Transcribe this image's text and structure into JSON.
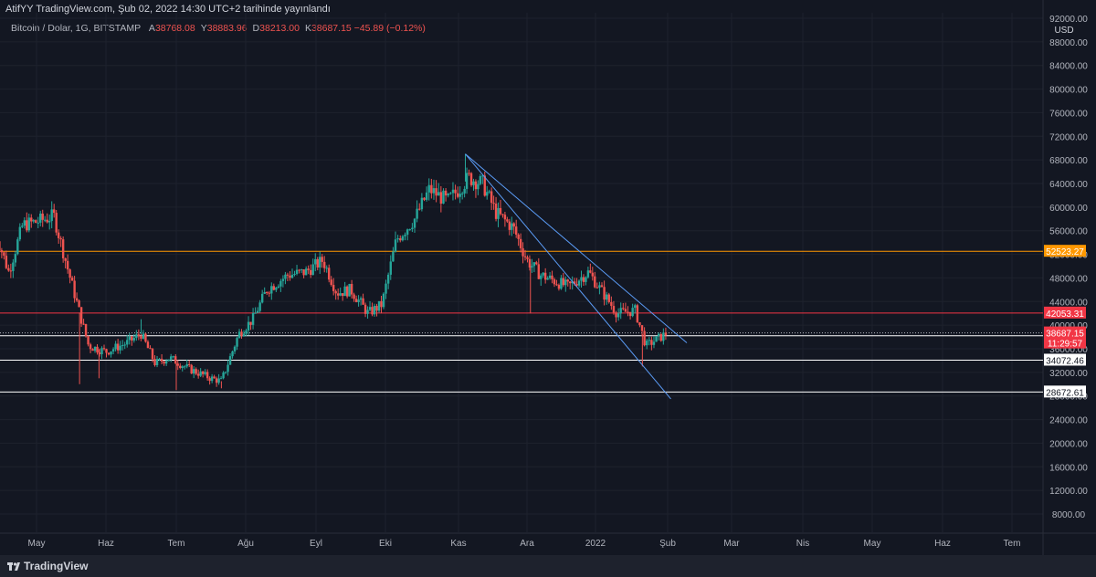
{
  "header": {
    "published": "AtifYY TradingView.com, Şub 02, 2022 14:30 UTC+2 tarihinde yayınlandı",
    "symbol": "Bitcoin / Dolar, 1G, BITSTAMP",
    "ohlc": [
      {
        "key": "A",
        "value": "38768.08"
      },
      {
        "key": "Y",
        "value": "38883.96"
      },
      {
        "key": "D",
        "value": "38213.00"
      },
      {
        "key": "K",
        "value": "38687.15 −45.89 (−0.12%)"
      }
    ]
  },
  "footer": {
    "brand": "TradingView"
  },
  "chart_data": {
    "type": "candlestick",
    "currency": "USD",
    "ylim": [
      6000,
      92000
    ],
    "y_ticks": [
      8000,
      12000,
      16000,
      20000,
      24000,
      28000,
      32000,
      36000,
      40000,
      44000,
      48000,
      52000,
      56000,
      60000,
      64000,
      68000,
      72000,
      76000,
      80000,
      84000,
      88000,
      92000
    ],
    "x_ticks": [
      "May",
      "Haz",
      "Tem",
      "Ağu",
      "Eyl",
      "Eki",
      "Kas",
      "Ara",
      "2022",
      "Şub",
      "Mar",
      "Nis",
      "May",
      "Haz",
      "Tem"
    ],
    "close_path": [
      {
        "t": -0.6,
        "p": 56000
      },
      {
        "t": -0.4,
        "p": 49000
      },
      {
        "t": -0.2,
        "p": 57000
      },
      {
        "t": 0.0,
        "p": 57500
      },
      {
        "t": 0.25,
        "p": 58500
      },
      {
        "t": 0.45,
        "p": 49500
      },
      {
        "t": 0.6,
        "p": 43000
      },
      {
        "t": 0.75,
        "p": 36500
      },
      {
        "t": 1.0,
        "p": 35500
      },
      {
        "t": 1.3,
        "p": 37000
      },
      {
        "t": 1.5,
        "p": 38500
      },
      {
        "t": 1.7,
        "p": 33500
      },
      {
        "t": 1.9,
        "p": 34500
      },
      {
        "t": 2.2,
        "p": 32500
      },
      {
        "t": 2.5,
        "p": 31000
      },
      {
        "t": 2.65,
        "p": 30500
      },
      {
        "t": 2.9,
        "p": 38500
      },
      {
        "t": 3.1,
        "p": 41000
      },
      {
        "t": 3.3,
        "p": 46000
      },
      {
        "t": 3.6,
        "p": 48500
      },
      {
        "t": 3.85,
        "p": 49000
      },
      {
        "t": 4.1,
        "p": 51000
      },
      {
        "t": 4.3,
        "p": 45500
      },
      {
        "t": 4.5,
        "p": 46000
      },
      {
        "t": 4.75,
        "p": 42000
      },
      {
        "t": 4.95,
        "p": 43500
      },
      {
        "t": 5.15,
        "p": 54500
      },
      {
        "t": 5.4,
        "p": 58000
      },
      {
        "t": 5.6,
        "p": 63000
      },
      {
        "t": 5.85,
        "p": 61000
      },
      {
        "t": 6.15,
        "p": 65000
      },
      {
        "t": 6.35,
        "p": 64000
      },
      {
        "t": 6.55,
        "p": 59000
      },
      {
        "t": 6.8,
        "p": 56500
      },
      {
        "t": 7.0,
        "p": 51000
      },
      {
        "t": 7.2,
        "p": 48500
      },
      {
        "t": 7.6,
        "p": 46500
      },
      {
        "t": 7.9,
        "p": 49000
      },
      {
        "t": 8.1,
        "p": 45500
      },
      {
        "t": 8.3,
        "p": 42000
      },
      {
        "t": 8.55,
        "p": 42500
      },
      {
        "t": 8.7,
        "p": 36500
      },
      {
        "t": 9.0,
        "p": 38687
      }
    ],
    "candle_spikes": [
      {
        "t": 0.62,
        "low": 30000
      },
      {
        "t": 0.9,
        "low": 31000
      },
      {
        "t": 1.5,
        "high": 41000
      },
      {
        "t": 2.0,
        "low": 29000
      },
      {
        "t": 2.65,
        "low": 29300
      },
      {
        "t": 6.1,
        "high": 69000
      },
      {
        "t": 7.05,
        "low": 42000
      },
      {
        "t": 8.65,
        "low": 33000
      }
    ],
    "horizontal_levels": [
      {
        "price": "52523.27",
        "color": "#ff9800"
      },
      {
        "price": "42053.31",
        "color": "#f23645"
      },
      {
        "price": "38207.13",
        "color": "#ffffff"
      },
      {
        "price": "34072.46",
        "color": "#ffffff"
      },
      {
        "price": "28672.61",
        "color": "#ffffff"
      }
    ],
    "current_price": {
      "value": "38687.15",
      "countdown": "11:29:57",
      "color": "#f23645"
    },
    "trendlines": [
      {
        "from": {
          "t": 6.1,
          "p": 69000
        },
        "to": {
          "t": 9.3,
          "p": 37000
        },
        "color": "#5b9cf6"
      },
      {
        "from": {
          "t": 6.1,
          "p": 69000
        },
        "to": {
          "t": 9.05,
          "p": 27500
        },
        "color": "#5b9cf6"
      }
    ],
    "colors": {
      "up": "#26a69a",
      "down": "#ef5350",
      "grid": "#1e222d",
      "background": "#131722"
    }
  }
}
